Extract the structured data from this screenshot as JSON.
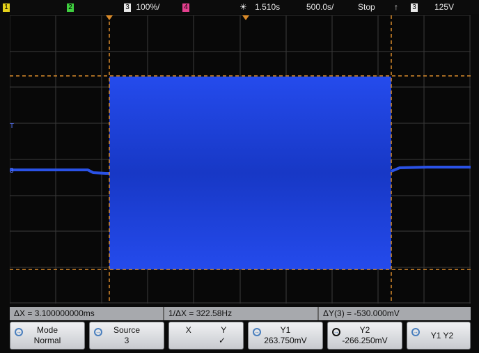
{
  "topbar": {
    "ch1": "1",
    "ch2": "2",
    "ch3_label": "3",
    "ch3_scale": "100%/",
    "ch4": "4",
    "trigger_icon": "sun-icon",
    "delay": "1.510s",
    "timebase": "500.0s/",
    "run_state": "Stop",
    "trigger_edge": "rising-edge-icon",
    "trigger_source": "3",
    "trigger_level": "125V",
    "colors": {
      "ch1": "#e6d21a",
      "ch2": "#3fcf3f",
      "ch3": "#5a78ff",
      "ch4": "#e5408f"
    }
  },
  "display": {
    "signal_color": "#1a3fd6",
    "cursor_color": "#d98a2a",
    "ground_marker": "3",
    "trigger_marker": "T"
  },
  "measurements": {
    "delta_x": "ΔX = 3.100000000ms",
    "inv_delta_x": "1/ΔX = 322.58Hz",
    "delta_y": "ΔY(3) = -530.000mV"
  },
  "softkeys": [
    {
      "l1": "Mode",
      "l2": "Normal"
    },
    {
      "l1": "Source",
      "l2": "3"
    },
    {
      "l1": "X",
      "l1b": "Y",
      "l2": "✓"
    },
    {
      "l1": "Y1",
      "l2": "263.750mV"
    },
    {
      "l1": "Y2",
      "l2": "-266.250mV"
    },
    {
      "l1": "Y1 Y2",
      "l2": ""
    }
  ]
}
